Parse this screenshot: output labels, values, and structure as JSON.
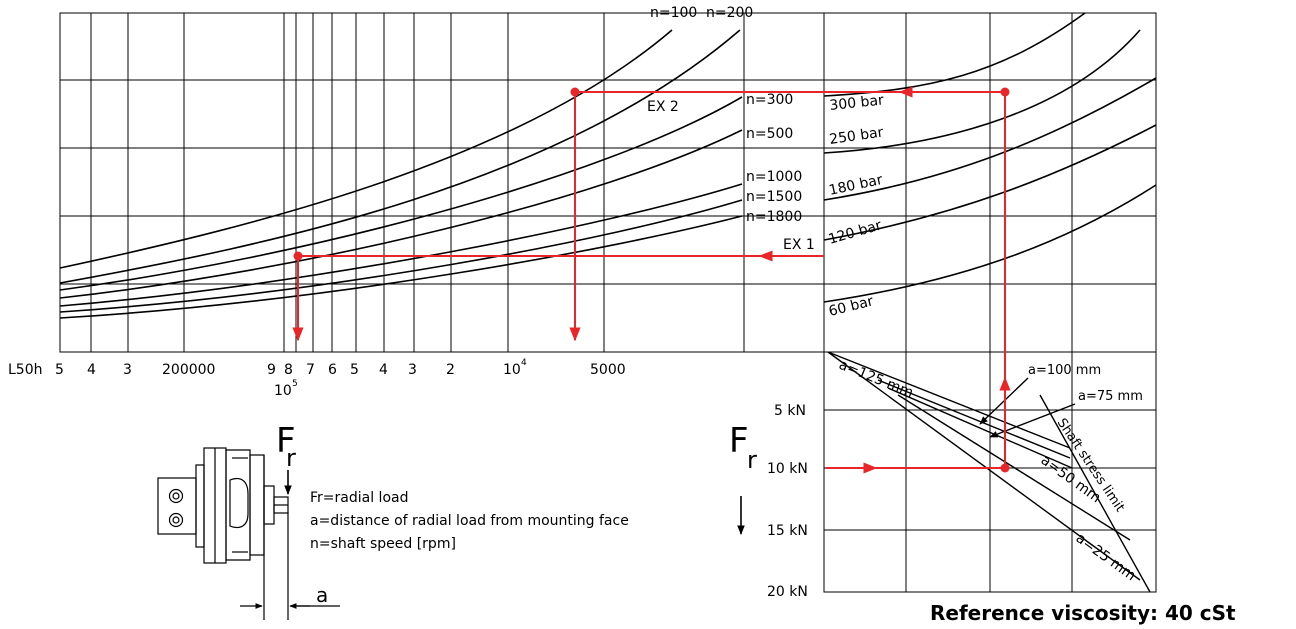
{
  "chart_data": {
    "type": "line",
    "title": "",
    "xlabel": "L50h",
    "life_axis_ticks": [
      "5",
      "4",
      "3",
      "200000",
      "9",
      "8",
      "7",
      "6",
      "5",
      "4",
      "3",
      "2",
      "10",
      "5000"
    ],
    "life_axis_exponents": {
      "nine": "5",
      "ten": "4"
    },
    "life_axis_sub": "10",
    "force_axis_symbol": "F",
    "force_axis_symbol_sub": "r",
    "force_ticks": [
      "5 kN",
      "10 kN",
      "15 kN",
      "20 kN"
    ],
    "speed_curves": [
      "n=100",
      "n=200",
      "n=300",
      "n=500",
      "n=1000",
      "n=1500",
      "n=1800"
    ],
    "pressure_curves": [
      "300 bar",
      "250 bar",
      "180 bar",
      "120 bar",
      "60 bar"
    ],
    "distance_lines": [
      "a=125 mm",
      "a=100 mm",
      "a=75 mm",
      "a=50 mm",
      "a=25 mm"
    ],
    "shaft_limit": "Shaft stress limit",
    "examples": [
      "EX 1",
      "EX 2"
    ],
    "example_color": "#e8262a"
  },
  "legend": {
    "fr_symbol": "F",
    "fr_sub": "r",
    "fr_text": "Fr=radial load",
    "a_text": "a=distance of radial load from mounting face",
    "n_text": "n=shaft speed [rpm]",
    "a_symbol": "a"
  },
  "footer": {
    "reference": "Reference viscosity: 40 cSt"
  }
}
